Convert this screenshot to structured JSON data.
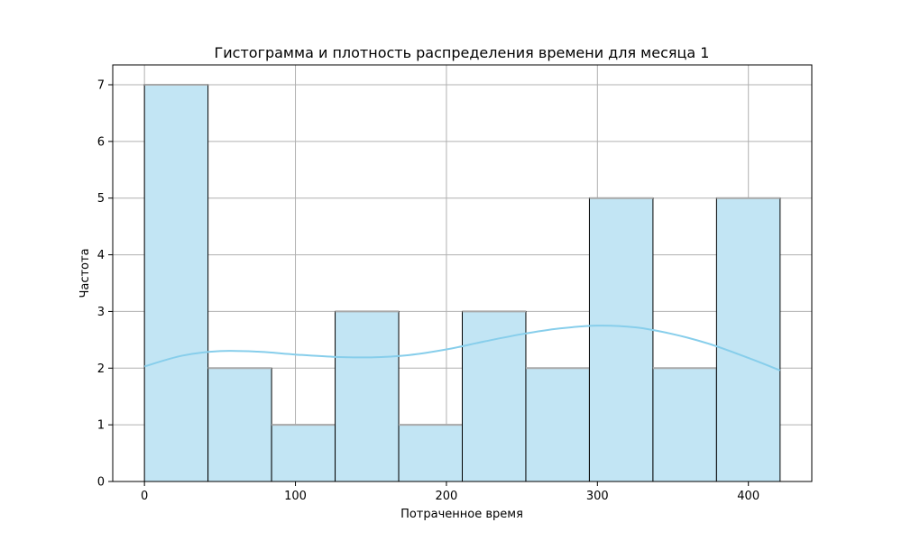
{
  "chart_data": {
    "type": "bar",
    "subtype": "histogram-with-density",
    "title": "Гистограмма и плотность распределения времени для месяца 1",
    "xlabel": "Потраченное время",
    "ylabel": "Частота",
    "xlim": [
      -21,
      442
    ],
    "ylim": [
      0,
      7.35
    ],
    "xticks": [
      0,
      100,
      200,
      300,
      400
    ],
    "yticks": [
      0,
      1,
      2,
      3,
      4,
      5,
      6,
      7
    ],
    "grid": true,
    "bin_edges": [
      0,
      42.1,
      84.2,
      126.3,
      168.4,
      210.5,
      252.6,
      294.7,
      336.8,
      378.9,
      421
    ],
    "counts": [
      7,
      2,
      1,
      3,
      1,
      3,
      2,
      5,
      2,
      5
    ],
    "density_curve": {
      "x": [
        0,
        25,
        50,
        75,
        100,
        125,
        150,
        175,
        200,
        225,
        250,
        275,
        300,
        325,
        350,
        375,
        400,
        421
      ],
      "y": [
        2.03,
        2.22,
        2.3,
        2.29,
        2.24,
        2.2,
        2.19,
        2.23,
        2.33,
        2.47,
        2.6,
        2.7,
        2.75,
        2.72,
        2.6,
        2.42,
        2.18,
        1.96
      ]
    },
    "colors": {
      "bar_fill": "#c2e5f4",
      "bar_edge": "#000000",
      "bar_top": "#a8a8a8",
      "density_line": "#87ceeb",
      "grid": "#b0b0b0",
      "axis": "#000000"
    }
  }
}
